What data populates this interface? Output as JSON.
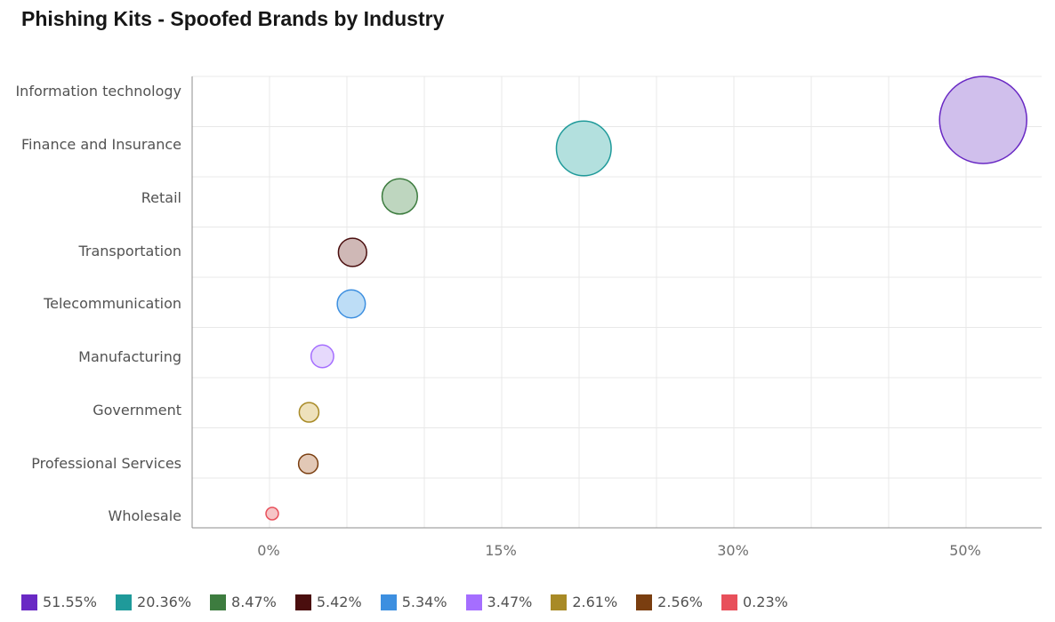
{
  "chart_data": {
    "type": "bubble",
    "title": "Phishing Kits - Spoofed Brands by Industry",
    "x_ticks": [
      "0%",
      "15%",
      "30%",
      "50%"
    ],
    "categories": [
      "Information technology",
      "Finance and Insurance",
      "Retail",
      "Transportation",
      "Telecommunication",
      "Manufacturing",
      "Government",
      "Professional Services",
      "Wholesale"
    ],
    "series": [
      {
        "category": "Information technology",
        "value": 51.55,
        "label": "51.55%",
        "color": "#6929c4",
        "fill": "#d0bfec"
      },
      {
        "category": "Finance and Insurance",
        "value": 20.36,
        "label": "20.36%",
        "color": "#1f9a9a",
        "fill": "#b3e0de"
      },
      {
        "category": "Retail",
        "value": 8.47,
        "label": "8.47%",
        "color": "#3d7c3f",
        "fill": "#bed6bf"
      },
      {
        "category": "Transportation",
        "value": 5.42,
        "label": "5.42%",
        "color": "#4a0e0e",
        "fill": "#cfb8b6"
      },
      {
        "category": "Telecommunication",
        "value": 5.34,
        "label": "5.34%",
        "color": "#3d8fe0",
        "fill": "#bdddf6"
      },
      {
        "category": "Manufacturing",
        "value": 3.47,
        "label": "3.47%",
        "color": "#a56eff",
        "fill": "#e6d9fc"
      },
      {
        "category": "Government",
        "value": 2.61,
        "label": "2.61%",
        "color": "#a88a26",
        "fill": "#eee1bb"
      },
      {
        "category": "Professional Services",
        "value": 2.56,
        "label": "2.56%",
        "color": "#7a3e10",
        "fill": "#e2c8b6"
      },
      {
        "category": "Wholesale",
        "value": 0.23,
        "label": "0.23%",
        "color": "#e8505b",
        "fill": "#f6c4c6"
      }
    ],
    "legend_position": "bottom-left",
    "grid": true
  }
}
